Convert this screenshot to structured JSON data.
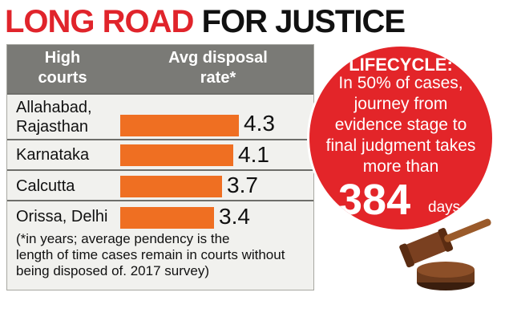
{
  "header": {
    "title_part1": "LONG ROAD",
    "title_part2": "FOR JUSTICE"
  },
  "table": {
    "col1_header": "High\ncourts",
    "col2_header": "Avg disposal\nrate*",
    "rows": [
      {
        "label": "Allahabad,\nRajasthan",
        "value": "4.3"
      },
      {
        "label": "Karnataka",
        "value": "4.1"
      },
      {
        "label": "Calcutta",
        "value": "3.7"
      },
      {
        "label": "Orissa, Delhi",
        "value": "3.4"
      }
    ],
    "footnote": "(*in years; average pendency is the\nlength of time cases remain in courts without\nbeing disposed of. 2017 survey)"
  },
  "callout": {
    "heading": "LIFECYCLE:",
    "text": "In 50% of cases,\njourney from\nevidence stage to\nfinal judgment takes\nmore than",
    "number": "384",
    "unit": "days"
  },
  "chart_data": {
    "type": "bar",
    "categories": [
      "Allahabad, Rajasthan",
      "Karnataka",
      "Calcutta",
      "Orissa, Delhi"
    ],
    "values": [
      4.3,
      4.1,
      3.7,
      3.4
    ],
    "title": "LONG ROAD FOR JUSTICE",
    "xlabel": "Avg disposal rate*",
    "ylabel": "High courts",
    "orientation": "horizontal",
    "grid": false
  },
  "colors": {
    "accent_red": "#e32529",
    "bar_orange": "#ef6f22",
    "header_gray": "#7a7a76",
    "panel_bg": "#f1f1ee"
  },
  "icons": [
    "gavel-icon"
  ]
}
